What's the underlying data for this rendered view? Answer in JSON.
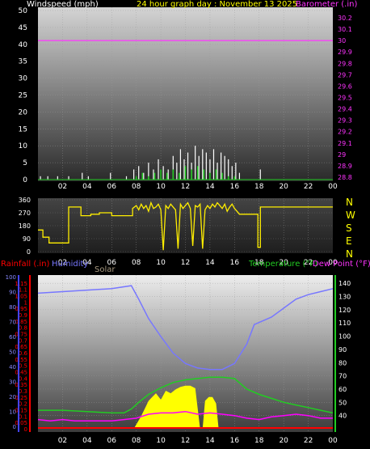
{
  "header": {
    "left_label": "Windspeed (mph)",
    "center_label": "24 hour graph day : November 13 2025",
    "right_label": "Barometer (.in)"
  },
  "bottom_header": {
    "rainfall_label": "Rainfall (.in)",
    "humidity_label": "Humidity",
    "solar_label": "Solar",
    "temperature_label": "Temperature (°F)",
    "dewpoint_label": "Dew Point (°F)"
  },
  "colors": {
    "windspeed": "#ffffff",
    "gust": "#d8d8d8",
    "wind_avg": "#22cc22",
    "barometer": "#ff33ff",
    "direction": "#ffee00",
    "humidity": "#7777ff",
    "temperature": "#22cc22",
    "dewpoint": "#ff00ff",
    "solar": "#ffff00",
    "rainfall": "#ff0000",
    "axis_rain": "#ff0000",
    "axis_humidity": "#4444ff",
    "axis_temp": "#22cc22"
  },
  "chart_data": [
    {
      "type": "bar",
      "id": "wind-barometer",
      "x_ticks": [
        "02",
        "04",
        "06",
        "08",
        "10",
        "12",
        "14",
        "16",
        "18",
        "20",
        "22",
        "00"
      ],
      "y_left_ticks": [
        "0",
        "5",
        "10",
        "15",
        "20",
        "25",
        "30",
        "35",
        "40",
        "45",
        "50"
      ],
      "y_left_range": [
        0,
        50
      ],
      "y_right_ticks": [
        "28.8",
        "28.9",
        "29",
        "29.1",
        "29.2",
        "29.3",
        "29.4",
        "29.5",
        "29.6",
        "29.7",
        "29.8",
        "29.9",
        "30",
        "30.1",
        "30.2"
      ],
      "y_right_range": [
        28.8,
        30.2
      ],
      "series": [
        {
          "name": "Windspeed (mph)",
          "kind": "wind-gust-bars",
          "x_hours": [
            0.2,
            0.8,
            1.6,
            2.5,
            3.6,
            4.1,
            5.9,
            7.2,
            7.8,
            8.2,
            8.6,
            9.0,
            9.4,
            9.8,
            10.2,
            10.6,
            11.0,
            11.3,
            11.6,
            11.9,
            12.2,
            12.5,
            12.8,
            13.1,
            13.4,
            13.7,
            14.0,
            14.3,
            14.6,
            14.9,
            15.2,
            15.5,
            15.8,
            16.1,
            16.4,
            18.1
          ],
          "values": [
            1,
            1,
            1,
            1,
            2,
            1,
            2,
            1,
            3,
            4,
            2,
            5,
            3,
            6,
            4,
            3,
            7,
            5,
            9,
            6,
            8,
            5,
            10,
            7,
            9,
            8,
            6,
            9,
            5,
            8,
            7,
            6,
            4,
            5,
            2,
            3
          ]
        },
        {
          "name": "wind-average",
          "kind": "green-bars",
          "x_hours": [
            8.0,
            8.5,
            9.0,
            9.5,
            10.0,
            10.5,
            11.0,
            11.5,
            12.0,
            12.5,
            13.0,
            13.5,
            14.0,
            14.5,
            15.0,
            15.5,
            16.0
          ],
          "values": [
            1,
            2,
            1,
            2,
            3,
            2,
            3,
            2,
            4,
            3,
            4,
            3,
            2,
            3,
            2,
            1,
            1
          ]
        },
        {
          "name": "Barometer (.in)",
          "kind": "line",
          "x_hours": [
            0,
            24
          ],
          "values": [
            30.0,
            30.0
          ]
        }
      ]
    },
    {
      "type": "line",
      "id": "wind-direction",
      "y_ticks": [
        "0",
        "90",
        "180",
        "270",
        "360"
      ],
      "y_range": [
        0,
        360
      ],
      "compass_labels": [
        "N",
        "W",
        "S",
        "E",
        "N"
      ],
      "series": [
        {
          "name": "direction",
          "x_hours": [
            0,
            0.4,
            0.4,
            0.9,
            0.9,
            1.4,
            1.4,
            2.2,
            2.2,
            2.5,
            2.5,
            3.5,
            3.5,
            4.3,
            4.3,
            5.0,
            5.0,
            6.0,
            6.0,
            6.8,
            6.8,
            7.7,
            7.7,
            8.0,
            8.2,
            8.4,
            8.6,
            8.8,
            9.0,
            9.2,
            9.4,
            9.6,
            9.8,
            10.0,
            10.2,
            10.4,
            10.6,
            10.8,
            11.0,
            11.2,
            11.4,
            11.6,
            11.8,
            12.0,
            12.2,
            12.4,
            12.6,
            12.8,
            13.0,
            13.2,
            13.4,
            13.6,
            13.8,
            14.0,
            14.2,
            14.4,
            14.6,
            14.8,
            15.0,
            15.2,
            15.4,
            15.6,
            15.8,
            16.0,
            16.2,
            16.4,
            16.6,
            17.6,
            17.9,
            17.9,
            18.1,
            18.1,
            24.0
          ],
          "values": [
            150,
            150,
            100,
            100,
            60,
            60,
            60,
            60,
            60,
            60,
            310,
            310,
            250,
            250,
            260,
            260,
            270,
            270,
            250,
            250,
            250,
            250,
            300,
            320,
            290,
            330,
            300,
            320,
            280,
            340,
            300,
            310,
            330,
            290,
            10,
            320,
            300,
            330,
            310,
            290,
            20,
            330,
            300,
            320,
            340,
            300,
            40,
            320,
            310,
            330,
            20,
            290,
            320,
            300,
            330,
            310,
            340,
            320,
            300,
            330,
            280,
            310,
            330,
            300,
            280,
            260,
            260,
            260,
            260,
            30,
            30,
            310,
            310
          ]
        }
      ]
    },
    {
      "type": "line",
      "id": "temp-humidity-solar",
      "y_left_ticks": [
        "0",
        "0.05",
        "0.1",
        "0.15",
        "0.2",
        "0.25",
        "0.3",
        "0.35",
        "0.4",
        "0.45",
        "0.5",
        "0.55",
        "0.6",
        "0.65",
        "0.7",
        "0.75",
        "0.8",
        "0.85",
        "0.9",
        "0.95",
        "1",
        "1.05",
        "1.1",
        "1.15"
      ],
      "y_left_range": [
        0,
        1.2
      ],
      "y_humidity_ticks": [
        "0",
        "10",
        "20",
        "30",
        "40",
        "50",
        "60",
        "70",
        "80",
        "90",
        "100"
      ],
      "y_humidity_range": [
        0,
        100
      ],
      "y_right_ticks": [
        "40",
        "50",
        "60",
        "70",
        "80",
        "90",
        "100",
        "110",
        "120",
        "130",
        "140"
      ],
      "y_right_range": [
        30,
        145
      ],
      "series": [
        {
          "name": "Humidity",
          "x_hours": [
            0,
            2,
            4,
            6,
            7.6,
            8.2,
            9.0,
            10.0,
            11.0,
            12.0,
            13.0,
            14.0,
            15.0,
            16.0,
            17.0,
            17.6,
            19.0,
            20.0,
            21.0,
            22.0,
            23.0,
            24.0
          ],
          "values": [
            89,
            90,
            91,
            92,
            94,
            85,
            72,
            60,
            49,
            42,
            39,
            38,
            38,
            42,
            55,
            68,
            73,
            79,
            85,
            88,
            90,
            92
          ]
        },
        {
          "name": "Temperature (°F)",
          "x_hours": [
            0,
            2,
            4,
            6,
            7.0,
            7.6,
            8.2,
            9.0,
            10.0,
            11.0,
            12.0,
            13.0,
            14.0,
            15.0,
            16.0,
            17.0,
            18.0,
            19.0,
            20.0,
            21.0,
            22.0,
            23.0,
            24.0
          ],
          "values": [
            44,
            44,
            43,
            42,
            42,
            45,
            50,
            56,
            61,
            65,
            67,
            68,
            69,
            69,
            68,
            60,
            56,
            53,
            50,
            48,
            46,
            44,
            42
          ]
        },
        {
          "name": "Dew Point (°F)",
          "x_hours": [
            0,
            1,
            2,
            3,
            4,
            5,
            6,
            7,
            8,
            9,
            10,
            11,
            12,
            13,
            14,
            15,
            16,
            17,
            18,
            19,
            20,
            21,
            22,
            23,
            24
          ],
          "values": [
            37,
            36,
            37,
            36,
            36,
            36,
            36,
            37,
            38,
            41,
            42,
            42,
            43,
            41,
            42,
            41,
            40,
            38,
            37,
            39,
            40,
            41,
            40,
            38,
            38
          ]
        },
        {
          "name": "Solar",
          "kind": "area",
          "x_hours": [
            7.8,
            8.4,
            9.0,
            9.3,
            9.6,
            10.0,
            10.4,
            10.8,
            11.2,
            11.6,
            12.0,
            12.4,
            12.8,
            13.2,
            13.4,
            13.6,
            13.9,
            14.2,
            14.5,
            14.7
          ],
          "values": [
            0.0,
            0.1,
            0.22,
            0.25,
            0.28,
            0.23,
            0.3,
            0.28,
            0.31,
            0.33,
            0.34,
            0.34,
            0.32,
            0.0,
            0.0,
            0.22,
            0.25,
            0.25,
            0.2,
            0.0
          ]
        },
        {
          "name": "Rainfall (.in)",
          "x_hours": [
            0,
            24
          ],
          "values": [
            0,
            0
          ]
        }
      ]
    }
  ],
  "x_axis_ticks": [
    "02",
    "04",
    "06",
    "08",
    "10",
    "12",
    "14",
    "16",
    "18",
    "20",
    "22",
    "00"
  ]
}
